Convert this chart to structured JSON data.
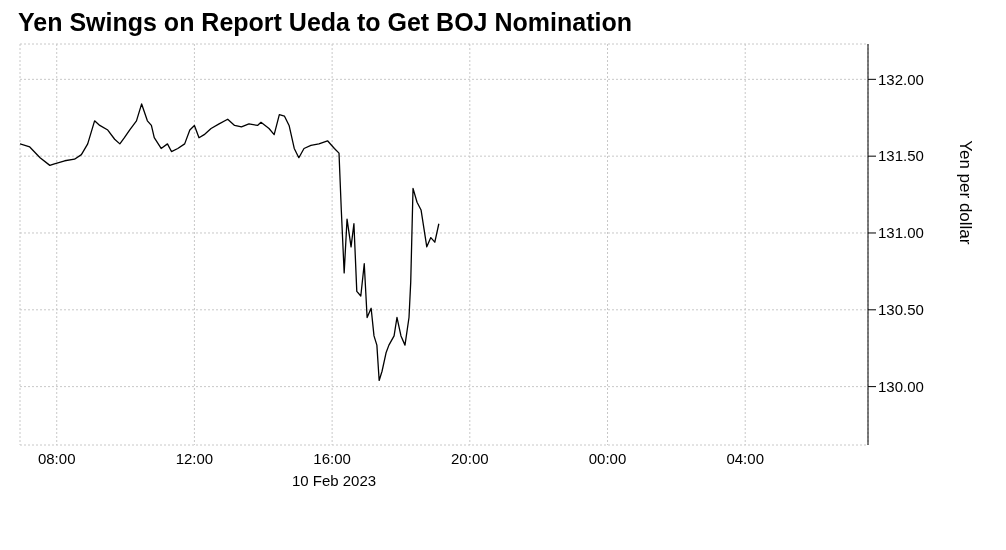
{
  "chart_data": {
    "type": "line",
    "title": "Yen Swings on Report Ueda to Get BOJ Nomination",
    "xlabel": "10 Feb 2023",
    "ylabel": "Yen per dollar",
    "grid": true,
    "marker": "none",
    "line_style": "solid",
    "xlim": [
      "2023-02-10T06:56",
      "2023-02-11T07:34"
    ],
    "ylim": [
      129.62,
      132.23
    ],
    "xticks": [
      {
        "value": "2023-02-10T08:00",
        "label": "08:00"
      },
      {
        "value": "2023-02-10T12:00",
        "label": "12:00"
      },
      {
        "value": "2023-02-10T16:00",
        "label": "16:00"
      },
      {
        "value": "2023-02-10T20:00",
        "label": "20:00"
      },
      {
        "value": "2023-02-11T00:00",
        "label": "00:00"
      },
      {
        "value": "2023-02-11T04:00",
        "label": "04:00"
      }
    ],
    "yticks": [
      {
        "value": 130,
        "label": "130.00"
      },
      {
        "value": 130.5,
        "label": "130.50"
      },
      {
        "value": 131,
        "label": "131.00"
      },
      {
        "value": 131.5,
        "label": "131.50"
      },
      {
        "value": 132,
        "label": "132.00"
      }
    ],
    "series": [
      {
        "color": "#000000",
        "x": [
          "2023-02-10T06:56",
          "2023-02-10T07:13",
          "2023-02-10T07:31",
          "2023-02-10T07:48",
          "2023-02-10T07:56",
          "2023-02-10T08:14",
          "2023-02-10T08:31",
          "2023-02-10T08:43",
          "2023-02-10T08:54",
          "2023-02-10T09:06",
          "2023-02-10T09:15",
          "2023-02-10T09:29",
          "2023-02-10T09:41",
          "2023-02-10T09:50",
          "2023-02-10T09:58",
          "2023-02-10T10:07",
          "2023-02-10T10:19",
          "2023-02-10T10:28",
          "2023-02-10T10:38",
          "2023-02-10T10:45",
          "2023-02-10T10:50",
          "2023-02-10T11:02",
          "2023-02-10T11:13",
          "2023-02-10T11:20",
          "2023-02-10T11:31",
          "2023-02-10T11:43",
          "2023-02-10T11:52",
          "2023-02-10T12:00",
          "2023-02-10T12:08",
          "2023-02-10T12:17",
          "2023-02-10T12:29",
          "2023-02-10T12:43",
          "2023-02-10T12:58",
          "2023-02-10T13:10",
          "2023-02-10T13:22",
          "2023-02-10T13:35",
          "2023-02-10T13:50",
          "2023-02-10T13:56",
          "2023-02-10T14:10",
          "2023-02-10T14:19",
          "2023-02-10T14:28",
          "2023-02-10T14:37",
          "2023-02-10T14:45",
          "2023-02-10T14:54",
          "2023-02-10T15:02",
          "2023-02-10T15:11",
          "2023-02-10T15:23",
          "2023-02-10T15:37",
          "2023-02-10T15:52",
          "2023-02-10T16:04",
          "2023-02-10T16:12",
          "2023-02-10T16:16",
          "2023-02-10T16:21",
          "2023-02-10T16:26",
          "2023-02-10T16:33",
          "2023-02-10T16:38",
          "2023-02-10T16:43",
          "2023-02-10T16:50",
          "2023-02-10T16:56",
          "2023-02-10T17:01",
          "2023-02-10T17:08",
          "2023-02-10T17:13",
          "2023-02-10T17:18",
          "2023-02-10T17:22",
          "2023-02-10T17:27",
          "2023-02-10T17:34",
          "2023-02-10T17:39",
          "2023-02-10T17:48",
          "2023-02-10T17:53",
          "2023-02-10T18:00",
          "2023-02-10T18:07",
          "2023-02-10T18:14",
          "2023-02-10T18:17",
          "2023-02-10T18:21",
          "2023-02-10T18:28",
          "2023-02-10T18:35",
          "2023-02-10T18:40",
          "2023-02-10T18:45",
          "2023-02-10T18:52",
          "2023-02-10T18:59",
          "2023-02-10T19:06"
        ],
        "values": [
          131.58,
          131.56,
          131.49,
          131.44,
          131.45,
          131.47,
          131.48,
          131.51,
          131.58,
          131.73,
          131.7,
          131.67,
          131.61,
          131.58,
          131.62,
          131.67,
          131.73,
          131.84,
          131.73,
          131.7,
          131.62,
          131.55,
          131.58,
          131.53,
          131.55,
          131.58,
          131.67,
          131.7,
          131.62,
          131.64,
          131.68,
          131.71,
          131.74,
          131.7,
          131.69,
          131.71,
          131.7,
          131.72,
          131.68,
          131.64,
          131.77,
          131.76,
          131.7,
          131.55,
          131.49,
          131.55,
          131.57,
          131.58,
          131.6,
          131.55,
          131.52,
          131.15,
          130.74,
          131.09,
          130.91,
          131.06,
          130.62,
          130.59,
          130.8,
          130.45,
          130.51,
          130.33,
          130.27,
          130.04,
          130.1,
          130.22,
          130.27,
          130.33,
          130.45,
          130.33,
          130.27,
          130.45,
          130.68,
          131.29,
          131.2,
          131.15,
          131.03,
          130.91,
          130.97,
          130.94,
          131.06
        ]
      }
    ]
  }
}
